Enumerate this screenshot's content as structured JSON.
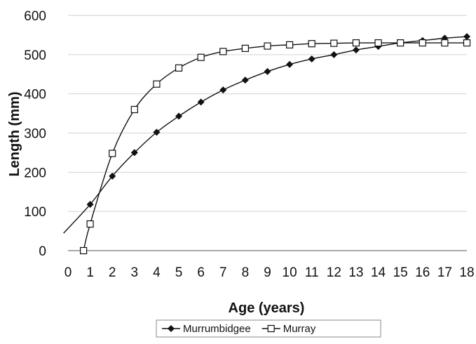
{
  "chart_data": {
    "type": "line",
    "title": "",
    "xlabel": "Age (years)",
    "ylabel": "Length (mm)",
    "xlim": [
      0,
      18
    ],
    "ylim": [
      0,
      600
    ],
    "x_ticks": [
      0,
      1,
      2,
      3,
      4,
      5,
      6,
      7,
      8,
      9,
      10,
      11,
      12,
      13,
      14,
      15,
      16,
      17,
      18
    ],
    "y_ticks": [
      0,
      100,
      200,
      300,
      400,
      500,
      600
    ],
    "grid": "horizontal",
    "legend_position": "bottom",
    "series": [
      {
        "name": "Murrumbidgee",
        "marker": "filled-diamond",
        "color": "#111111",
        "curve_from": -0.2,
        "x": [
          1,
          2,
          3,
          4,
          5,
          6,
          7,
          8,
          9,
          10,
          11,
          12,
          13,
          14,
          15,
          16,
          17,
          18
        ],
        "values": [
          118,
          190,
          250,
          302,
          343,
          379,
          410,
          435,
          457,
          475,
          489,
          500,
          512,
          521,
          530,
          536,
          542,
          546
        ]
      },
      {
        "name": "Murray",
        "marker": "open-square",
        "color": "#111111",
        "curve_from": null,
        "x": [
          0.7,
          1,
          2,
          3,
          4,
          5,
          6,
          7,
          8,
          9,
          10,
          11,
          12,
          13,
          14,
          15,
          16,
          17,
          18
        ],
        "values": [
          0,
          68,
          248,
          360,
          425,
          466,
          493,
          508,
          516,
          522,
          525,
          528,
          529,
          530,
          530,
          530,
          530,
          530,
          530
        ]
      }
    ]
  }
}
